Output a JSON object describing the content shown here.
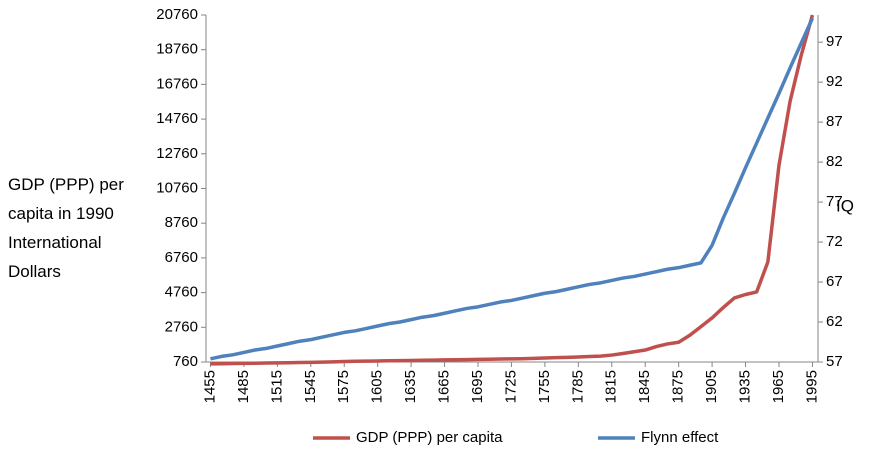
{
  "chart_data": {
    "type": "line",
    "ylabel": "GDP (PPP) per capita in 1990 International Dollars",
    "y2label": "IQ",
    "x": [
      1455,
      1465,
      1475,
      1485,
      1495,
      1505,
      1515,
      1525,
      1535,
      1545,
      1555,
      1565,
      1575,
      1585,
      1595,
      1605,
      1615,
      1625,
      1635,
      1645,
      1655,
      1665,
      1675,
      1685,
      1695,
      1705,
      1715,
      1725,
      1735,
      1745,
      1755,
      1765,
      1775,
      1785,
      1795,
      1805,
      1815,
      1825,
      1835,
      1845,
      1855,
      1865,
      1875,
      1885,
      1895,
      1905,
      1915,
      1925,
      1935,
      1945,
      1955,
      1965,
      1975,
      1985,
      1995
    ],
    "xlim": [
      1451,
      2000
    ],
    "xticks": [
      1455,
      1485,
      1515,
      1545,
      1575,
      1605,
      1635,
      1665,
      1695,
      1725,
      1755,
      1785,
      1815,
      1845,
      1875,
      1905,
      1935,
      1965,
      1995
    ],
    "ylim": [
      760,
      20760
    ],
    "yticks": [
      760,
      2760,
      4760,
      6760,
      8760,
      10760,
      12760,
      14760,
      16760,
      18760,
      20760
    ],
    "y2lim": [
      57,
      100.4
    ],
    "y2ticks": [
      57,
      62,
      67,
      72,
      77,
      82,
      87,
      92,
      97
    ],
    "legend": "bottom",
    "series": [
      {
        "name": "GDP (PPP) per capita",
        "color": "#c0504d",
        "axis": "y",
        "values": [
          650,
          660,
          670,
          680,
          690,
          700,
          710,
          720,
          730,
          740,
          750,
          770,
          790,
          800,
          810,
          820,
          830,
          840,
          850,
          860,
          870,
          880,
          890,
          900,
          910,
          920,
          930,
          940,
          950,
          970,
          990,
          1010,
          1030,
          1050,
          1080,
          1100,
          1160,
          1250,
          1350,
          1450,
          1650,
          1800,
          1900,
          2300,
          2800,
          3300,
          3900,
          4450,
          4650,
          4800,
          6520,
          12100,
          15800,
          18450,
          20760
        ]
      },
      {
        "name": "Flynn effect",
        "color": "#4f81bd",
        "axis": "y2",
        "values": [
          57.4,
          57.7,
          57.9,
          58.2,
          58.5,
          58.7,
          59.0,
          59.3,
          59.6,
          59.8,
          60.1,
          60.4,
          60.7,
          60.9,
          61.2,
          61.5,
          61.8,
          62.0,
          62.3,
          62.6,
          62.8,
          63.1,
          63.4,
          63.7,
          63.9,
          64.2,
          64.5,
          64.7,
          65.0,
          65.3,
          65.6,
          65.8,
          66.1,
          66.4,
          66.7,
          66.9,
          67.2,
          67.5,
          67.7,
          68.0,
          68.3,
          68.6,
          68.8,
          69.1,
          69.4,
          71.6,
          75.0,
          78.1,
          81.3,
          84.4,
          87.5,
          90.6,
          93.8,
          96.9,
          100.0
        ]
      }
    ]
  }
}
